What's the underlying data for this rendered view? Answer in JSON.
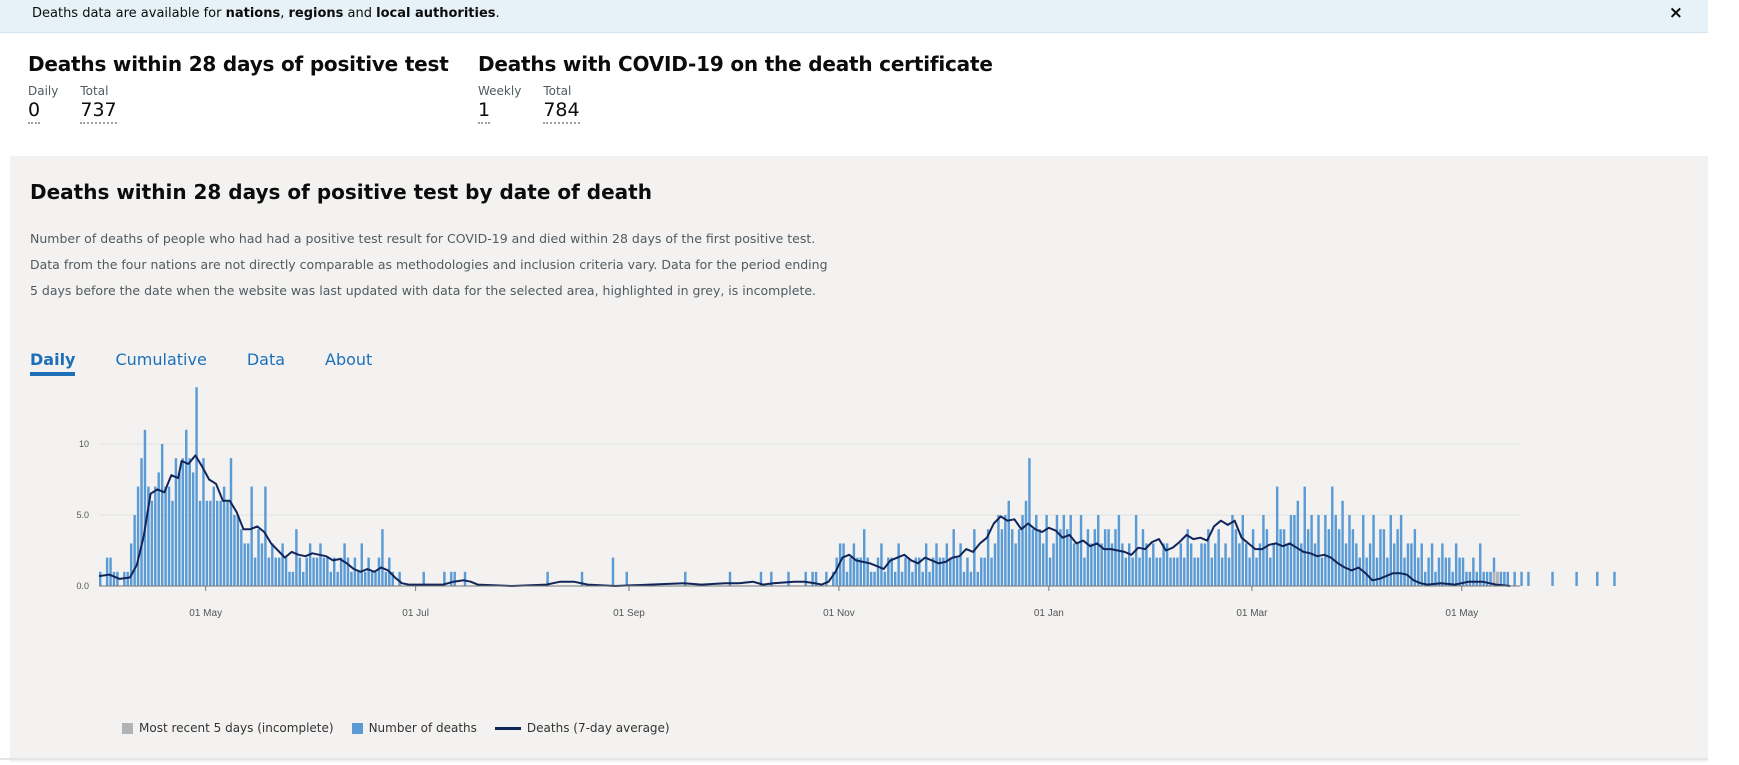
{
  "banner": {
    "text_prefix": "Deaths data are available for ",
    "link_nations": "nations",
    "sep1": ", ",
    "link_regions": "regions",
    "sep2": " and ",
    "link_local": "local authorities",
    "text_suffix": ".",
    "close_label": "×"
  },
  "summary_left": {
    "title": "Deaths within 28 days of positive test",
    "daily_label": "Daily",
    "daily_value": "0",
    "total_label": "Total",
    "total_value": "737"
  },
  "summary_right": {
    "title": "Deaths with COVID-19 on the death certificate",
    "weekly_label": "Weekly",
    "weekly_value": "1",
    "total_label": "Total",
    "total_value": "784"
  },
  "card": {
    "title": "Deaths within 28 days of positive test by date of death",
    "description": "Number of deaths of people who had had a positive test result for COVID-19 and died within 28 days of the first positive test. Data from the four nations are not directly comparable as methodologies and inclusion criteria vary. Data for the period ending 5 days before the date when the website was last updated with data for the selected area, highlighted in grey, is incomplete.",
    "tabs": [
      "Daily",
      "Cumulative",
      "Data",
      "About"
    ]
  },
  "colors": {
    "bars": "#5b9bd5",
    "incomplete": "#b1b4b6",
    "average": "#12255a",
    "accent": "#1d70b8"
  },
  "chart_data": {
    "type": "bar",
    "title": "",
    "xlabel": "",
    "ylabel": "",
    "ylim": [
      0,
      14
    ],
    "yticks": [
      "0.0",
      "5.0",
      "10"
    ],
    "ytick_values": [
      0,
      5,
      10
    ],
    "xticks": [
      "01 May",
      "01 Jul",
      "01 Sep",
      "01 Nov",
      "01 Jan",
      "01 Mar",
      "01 May"
    ],
    "xtick_days": [
      31,
      92,
      154,
      215,
      276,
      335,
      396
    ],
    "start_day": 0,
    "bars_segments": [
      {
        "from": 0,
        "values": [
          1,
          0,
          2,
          2,
          1,
          1,
          0,
          1,
          1,
          3,
          5,
          7,
          9,
          11,
          7,
          6,
          7,
          8,
          10,
          7,
          7,
          6,
          9,
          8,
          9,
          11,
          9,
          8,
          14,
          6,
          9,
          6,
          6,
          7,
          6,
          6,
          7,
          6,
          9,
          5,
          5,
          4,
          3,
          3,
          7,
          2,
          4,
          3,
          7,
          2,
          3,
          2,
          2,
          3,
          2,
          1,
          1,
          4,
          2,
          1,
          2,
          3,
          2,
          2,
          3,
          2,
          2,
          1,
          2,
          1,
          2,
          3,
          2,
          1,
          2,
          1,
          3,
          1,
          2,
          1,
          1,
          2,
          4,
          1,
          2,
          1,
          0,
          1,
          0,
          0
        ]
      },
      {
        "from": 90,
        "values": [
          0,
          0,
          0,
          0,
          1,
          0,
          0,
          0,
          0,
          0,
          1,
          0,
          1,
          1,
          0,
          0,
          1,
          0,
          0,
          0,
          0,
          0,
          0,
          0,
          0,
          0,
          0,
          0,
          0,
          0,
          0,
          0,
          0,
          0,
          0,
          0,
          0,
          0,
          0,
          0,
          1,
          0,
          0,
          0,
          0,
          0,
          0,
          0,
          0,
          0,
          1,
          0,
          0,
          0,
          0,
          0,
          0,
          0,
          0,
          2,
          0,
          0,
          0,
          1,
          0,
          0,
          0,
          0,
          0,
          0,
          0,
          0,
          0,
          0,
          0,
          0,
          0,
          0,
          0,
          0,
          1,
          0,
          0,
          0,
          0,
          0,
          0,
          0,
          0,
          0,
          0,
          0,
          0,
          1,
          0,
          0,
          0,
          0,
          0,
          0,
          0,
          0,
          1,
          0,
          0,
          1,
          0,
          0,
          0,
          0,
          1,
          0,
          0,
          0,
          0,
          1,
          0,
          1,
          1,
          0,
          0,
          1,
          0,
          0,
          0,
          1,
          0,
          0,
          0,
          2
        ]
      },
      {
        "from": 213,
        "values": [
          1,
          2,
          3,
          3,
          1,
          2,
          3,
          2,
          2,
          4,
          2,
          1,
          1,
          2,
          3,
          1,
          2,
          2,
          1,
          3,
          1,
          2,
          2,
          1,
          2,
          2,
          1,
          3,
          1,
          2,
          3,
          2,
          2,
          3,
          2,
          4,
          2,
          3,
          1,
          2,
          1,
          4,
          1,
          2,
          2,
          4,
          2,
          3,
          5,
          4,
          5,
          6,
          4,
          3,
          4,
          5,
          6,
          9,
          4,
          5,
          4,
          3,
          5,
          2,
          3,
          5,
          4,
          5,
          4,
          5,
          3,
          3,
          5,
          2,
          4,
          3,
          4,
          5,
          3,
          4,
          4,
          3,
          4,
          5,
          3,
          2,
          3,
          2,
          5,
          2,
          4,
          3,
          2,
          3,
          2,
          2,
          3,
          3,
          2,
          2,
          2,
          3,
          2,
          4,
          3,
          2,
          2,
          3,
          3,
          4,
          2,
          3,
          4,
          2,
          3,
          2,
          5,
          4,
          3,
          5,
          3,
          2,
          4,
          2,
          3,
          5,
          4,
          2,
          3,
          7,
          4,
          4,
          3,
          5,
          5,
          6,
          3,
          7,
          4,
          5,
          3,
          5,
          2,
          5,
          4,
          7,
          5,
          4,
          6,
          3,
          5,
          4,
          3,
          2,
          5,
          2,
          3,
          5,
          2,
          4,
          4,
          2,
          5,
          3,
          4,
          5,
          2,
          3,
          3,
          4,
          2,
          3,
          1,
          2,
          3,
          1,
          2,
          3,
          2,
          2,
          1,
          3,
          2,
          2,
          1,
          1,
          2,
          1,
          3,
          1,
          1,
          1,
          2,
          1,
          1,
          1,
          1,
          0,
          1,
          0,
          1,
          0,
          1,
          0,
          0,
          0,
          0,
          0,
          0,
          1,
          0,
          0,
          0,
          0,
          0,
          0,
          1,
          0,
          0,
          0,
          0,
          0,
          1,
          0,
          0,
          0,
          0,
          1,
          0,
          0,
          0,
          0,
          0,
          0
        ]
      }
    ],
    "incomplete": {
      "from": 405,
      "values": [
        1,
        1,
        0,
        0,
        0
      ]
    },
    "series_average_points": [
      [
        0,
        0.7
      ],
      [
        3,
        0.8
      ],
      [
        6,
        0.5
      ],
      [
        9,
        0.6
      ],
      [
        11,
        1.5
      ],
      [
        13,
        3.5
      ],
      [
        15,
        6.5
      ],
      [
        17,
        6.8
      ],
      [
        19,
        6.6
      ],
      [
        21,
        7.8
      ],
      [
        23,
        7.6
      ],
      [
        24,
        8.8
      ],
      [
        26,
        8.6
      ],
      [
        28,
        9.2
      ],
      [
        30,
        8.4
      ],
      [
        32,
        7.5
      ],
      [
        34,
        7.2
      ],
      [
        36,
        6.0
      ],
      [
        38,
        6.0
      ],
      [
        40,
        5.2
      ],
      [
        42,
        4.0
      ],
      [
        44,
        4.0
      ],
      [
        46,
        4.2
      ],
      [
        48,
        3.8
      ],
      [
        50,
        3.0
      ],
      [
        52,
        2.5
      ],
      [
        54,
        2.0
      ],
      [
        56,
        2.4
      ],
      [
        58,
        2.2
      ],
      [
        60,
        2.1
      ],
      [
        62,
        2.3
      ],
      [
        64,
        2.2
      ],
      [
        66,
        2.1
      ],
      [
        68,
        1.8
      ],
      [
        70,
        1.9
      ],
      [
        72,
        1.6
      ],
      [
        74,
        1.2
      ],
      [
        76,
        1.0
      ],
      [
        78,
        1.2
      ],
      [
        80,
        1.0
      ],
      [
        82,
        1.3
      ],
      [
        84,
        1.1
      ],
      [
        86,
        0.6
      ],
      [
        88,
        0.2
      ],
      [
        90,
        0.1
      ],
      [
        96,
        0.1
      ],
      [
        100,
        0.1
      ],
      [
        103,
        0.3
      ],
      [
        106,
        0.4
      ],
      [
        108,
        0.3
      ],
      [
        110,
        0.1
      ],
      [
        120,
        0.0
      ],
      [
        130,
        0.1
      ],
      [
        134,
        0.3
      ],
      [
        138,
        0.3
      ],
      [
        142,
        0.1
      ],
      [
        150,
        0.0
      ],
      [
        160,
        0.1
      ],
      [
        170,
        0.2
      ],
      [
        175,
        0.1
      ],
      [
        182,
        0.2
      ],
      [
        186,
        0.2
      ],
      [
        190,
        0.3
      ],
      [
        193,
        0.1
      ],
      [
        196,
        0.2
      ],
      [
        202,
        0.3
      ],
      [
        205,
        0.3
      ],
      [
        208,
        0.2
      ],
      [
        210,
        0.1
      ],
      [
        212,
        0.3
      ],
      [
        214,
        1.0
      ],
      [
        216,
        2.0
      ],
      [
        218,
        2.2
      ],
      [
        220,
        1.8
      ],
      [
        222,
        1.7
      ],
      [
        224,
        1.6
      ],
      [
        226,
        1.4
      ],
      [
        228,
        1.2
      ],
      [
        230,
        1.8
      ],
      [
        232,
        2.0
      ],
      [
        234,
        2.2
      ],
      [
        236,
        1.8
      ],
      [
        238,
        1.6
      ],
      [
        240,
        2.0
      ],
      [
        242,
        1.8
      ],
      [
        244,
        1.6
      ],
      [
        246,
        1.7
      ],
      [
        248,
        2.0
      ],
      [
        250,
        2.1
      ],
      [
        252,
        2.6
      ],
      [
        254,
        2.4
      ],
      [
        256,
        3.0
      ],
      [
        258,
        3.4
      ],
      [
        260,
        4.4
      ],
      [
        262,
        4.9
      ],
      [
        264,
        4.6
      ],
      [
        266,
        4.7
      ],
      [
        268,
        4.0
      ],
      [
        270,
        4.4
      ],
      [
        272,
        4.0
      ],
      [
        274,
        3.8
      ],
      [
        276,
        4.1
      ],
      [
        278,
        3.9
      ],
      [
        280,
        3.4
      ],
      [
        282,
        3.6
      ],
      [
        284,
        3.0
      ],
      [
        286,
        3.2
      ],
      [
        288,
        2.8
      ],
      [
        290,
        3.0
      ],
      [
        292,
        2.6
      ],
      [
        294,
        2.6
      ],
      [
        296,
        2.5
      ],
      [
        298,
        2.4
      ],
      [
        300,
        2.2
      ],
      [
        302,
        2.7
      ],
      [
        304,
        2.6
      ],
      [
        306,
        3.1
      ],
      [
        308,
        3.3
      ],
      [
        310,
        2.5
      ],
      [
        312,
        2.7
      ],
      [
        314,
        3.1
      ],
      [
        316,
        3.6
      ],
      [
        318,
        3.3
      ],
      [
        320,
        3.4
      ],
      [
        322,
        3.2
      ],
      [
        324,
        4.2
      ],
      [
        326,
        4.6
      ],
      [
        328,
        4.3
      ],
      [
        330,
        4.6
      ],
      [
        332,
        3.4
      ],
      [
        334,
        3.0
      ],
      [
        336,
        2.6
      ],
      [
        338,
        2.6
      ],
      [
        340,
        2.9
      ],
      [
        342,
        3.0
      ],
      [
        344,
        2.8
      ],
      [
        346,
        3.0
      ],
      [
        348,
        2.7
      ],
      [
        350,
        2.4
      ],
      [
        352,
        2.3
      ],
      [
        354,
        2.1
      ],
      [
        356,
        2.2
      ],
      [
        358,
        2.0
      ],
      [
        360,
        1.6
      ],
      [
        362,
        1.3
      ],
      [
        364,
        1.1
      ],
      [
        366,
        1.3
      ],
      [
        368,
        0.9
      ],
      [
        370,
        0.4
      ],
      [
        372,
        0.5
      ],
      [
        374,
        0.7
      ],
      [
        376,
        0.9
      ],
      [
        378,
        0.9
      ],
      [
        380,
        0.8
      ],
      [
        382,
        0.4
      ],
      [
        384,
        0.2
      ],
      [
        386,
        0.1
      ],
      [
        390,
        0.2
      ],
      [
        394,
        0.1
      ],
      [
        398,
        0.3
      ],
      [
        402,
        0.3
      ],
      [
        404,
        0.2
      ],
      [
        406,
        0.1
      ],
      [
        410,
        0.0
      ]
    ],
    "legend": [
      "Most recent 5 days (incomplete)",
      "Number of deaths",
      "Deaths (7-day average)"
    ],
    "legend_position": "bottom-left",
    "grid": true
  }
}
